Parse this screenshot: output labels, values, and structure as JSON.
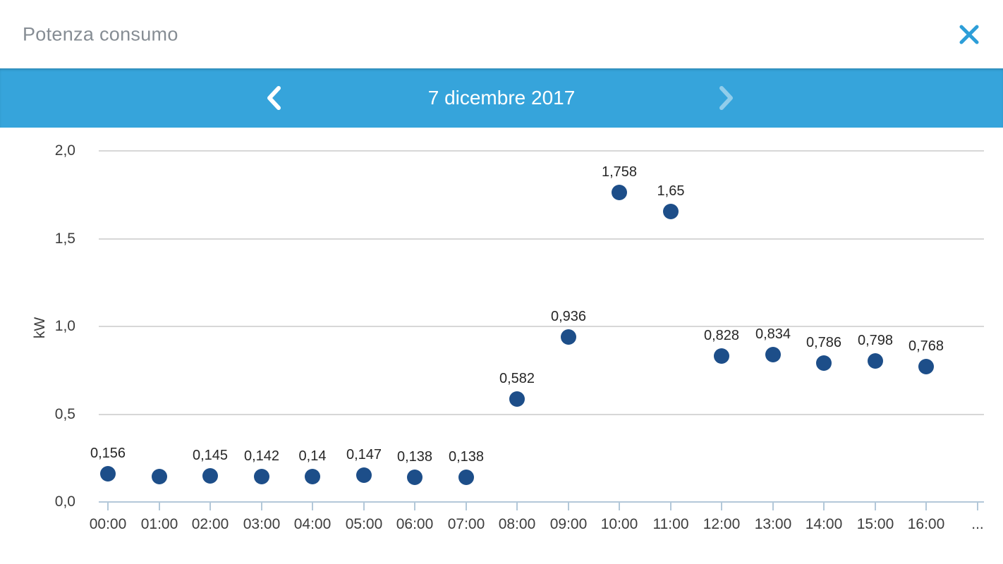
{
  "header": {
    "title": "Potenza consumo",
    "close_icon": "close-x"
  },
  "date_nav": {
    "date_label": "7 dicembre 2017",
    "prev_icon": "chevron-left",
    "next_icon": "chevron-right",
    "next_disabled": true
  },
  "colors": {
    "accent_blue": "#36a4db",
    "close_icon_blue": "#2d9ed8",
    "point_navy": "#1d4e89",
    "title_gray": "#868d94",
    "tick_text": "#3d3d3d",
    "gridline": "#d7d7d7",
    "axis_line": "#b3c8d9"
  },
  "chart_data": {
    "type": "scatter",
    "title": "Potenza consumo",
    "xlabel": "",
    "ylabel": "kW",
    "ylim": [
      0,
      2
    ],
    "yticks": [
      "0,0",
      "0,5",
      "1,0",
      "1,5",
      "2,0"
    ],
    "ytick_values": [
      0,
      0.5,
      1.0,
      1.5,
      2.0
    ],
    "grid": true,
    "legend": false,
    "x_overflow_label": "...",
    "points": [
      {
        "time": "00:00",
        "value": 0.156,
        "label": "0,156"
      },
      {
        "time": "01:00",
        "value": 0.14,
        "label": ""
      },
      {
        "time": "02:00",
        "value": 0.145,
        "label": "0,145"
      },
      {
        "time": "03:00",
        "value": 0.142,
        "label": "0,142"
      },
      {
        "time": "04:00",
        "value": 0.14,
        "label": "0,14"
      },
      {
        "time": "05:00",
        "value": 0.147,
        "label": "0,147"
      },
      {
        "time": "06:00",
        "value": 0.138,
        "label": "0,138"
      },
      {
        "time": "07:00",
        "value": 0.138,
        "label": "0,138"
      },
      {
        "time": "08:00",
        "value": 0.582,
        "label": "0,582"
      },
      {
        "time": "09:00",
        "value": 0.936,
        "label": "0,936"
      },
      {
        "time": "10:00",
        "value": 1.758,
        "label": "1,758"
      },
      {
        "time": "11:00",
        "value": 1.65,
        "label": "1,65"
      },
      {
        "time": "12:00",
        "value": 0.828,
        "label": "0,828"
      },
      {
        "time": "13:00",
        "value": 0.834,
        "label": "0,834"
      },
      {
        "time": "14:00",
        "value": 0.786,
        "label": "0,786"
      },
      {
        "time": "15:00",
        "value": 0.798,
        "label": "0,798"
      },
      {
        "time": "16:00",
        "value": 0.768,
        "label": "0,768"
      }
    ]
  }
}
